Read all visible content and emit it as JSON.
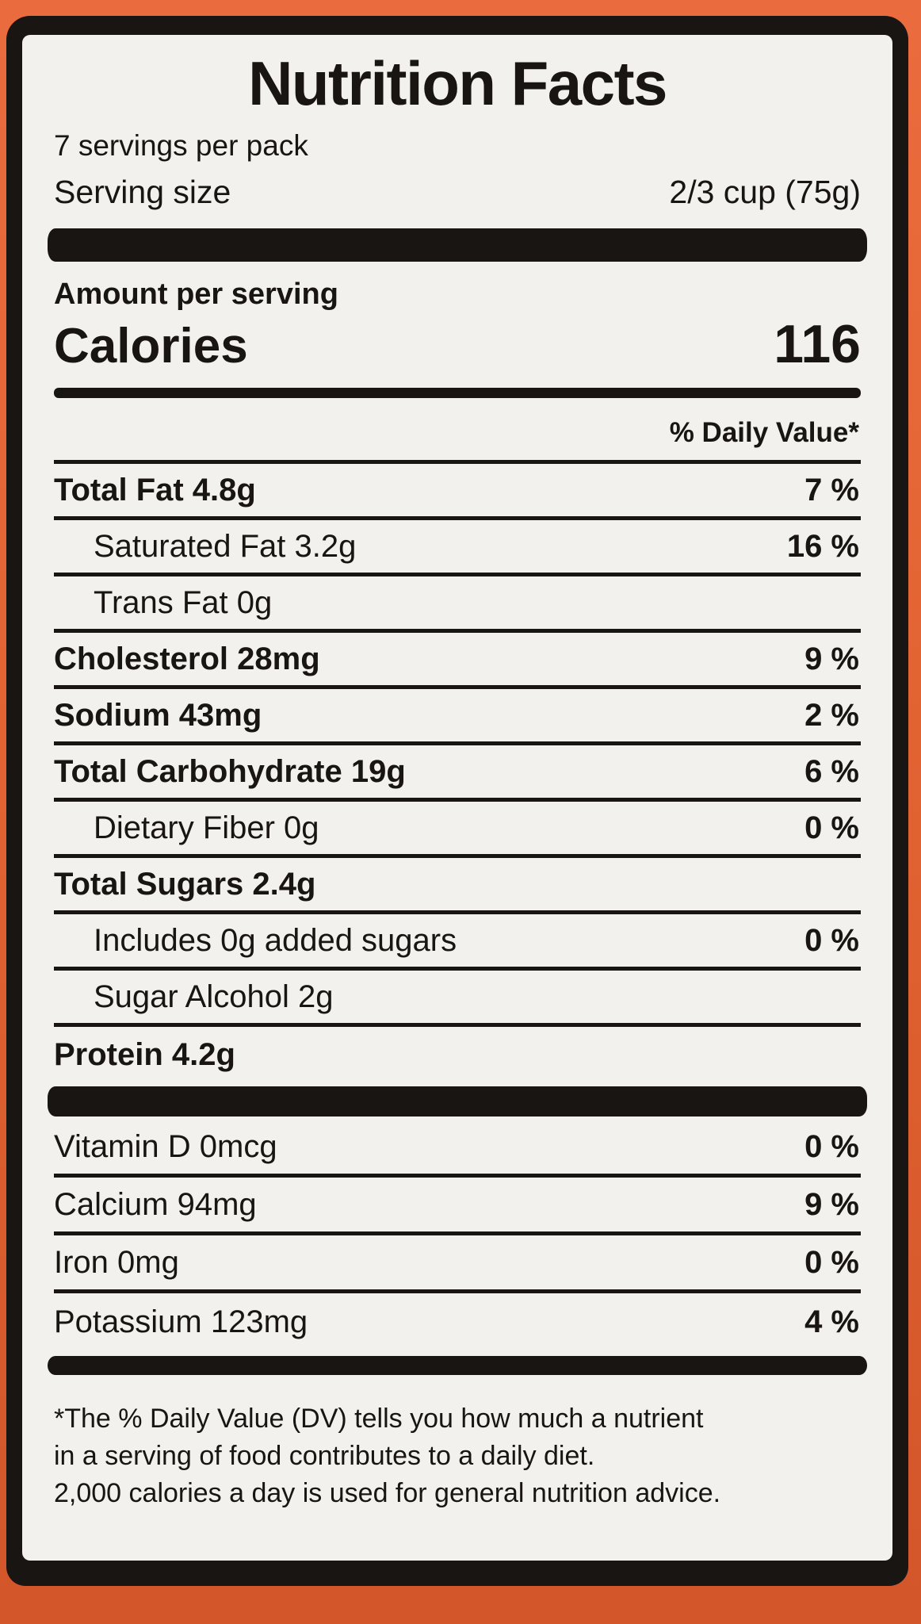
{
  "label": {
    "title": "Nutrition Facts",
    "servings_per_pack": "7 servings per pack",
    "serving_size_label": "Serving size",
    "serving_size_value": "2/3 cup (75g)",
    "amount_per_serving": "Amount per serving",
    "calories_label": "Calories",
    "calories_value": "116",
    "daily_value_header": "% Daily Value*",
    "rows": [
      {
        "name": "Total Fat 4.8g",
        "percent": "7 %",
        "emphasis": true,
        "indent": 0
      },
      {
        "name": "Saturated Fat 3.2g",
        "percent": "16 %",
        "emphasis": false,
        "indent": 1
      },
      {
        "name": "Trans Fat 0g",
        "percent": "",
        "emphasis": false,
        "indent": 1
      },
      {
        "name": "Cholesterol 28mg",
        "percent": "9 %",
        "emphasis": true,
        "indent": 0
      },
      {
        "name": "Sodium 43mg",
        "percent": "2 %",
        "emphasis": true,
        "indent": 0
      },
      {
        "name": "Total Carbohydrate 19g",
        "percent": "6 %",
        "emphasis": true,
        "indent": 0
      },
      {
        "name": "Dietary Fiber 0g",
        "percent": "0 %",
        "emphasis": false,
        "indent": 1
      },
      {
        "name": "Total Sugars 2.4g",
        "percent": "",
        "emphasis": true,
        "indent": 0
      },
      {
        "name": "Includes 0g added sugars",
        "percent": "0 %",
        "emphasis": false,
        "indent": 1
      },
      {
        "name": "Sugar Alcohol 2g",
        "percent": "",
        "emphasis": false,
        "indent": 1
      },
      {
        "name": "Protein 4.2g",
        "percent": "",
        "emphasis": true,
        "indent": 0
      }
    ],
    "micronutrients": [
      {
        "name": "Vitamin D 0mcg",
        "percent": "0 %",
        "emphasis": false,
        "indent": 0
      },
      {
        "name": "Calcium 94mg",
        "percent": "9 %",
        "emphasis": false,
        "indent": 0
      },
      {
        "name": "Iron 0mg",
        "percent": "0 %",
        "emphasis": false,
        "indent": 0
      },
      {
        "name": "Potassium 123mg",
        "percent": "4 %",
        "emphasis": false,
        "indent": 0
      }
    ],
    "footnote_lines": [
      {
        "text": "*The % Daily Value (DV) tells you how much a nutrient"
      },
      {
        "text": "in a serving of food contributes to a daily diet."
      },
      {
        "text": "2,000 calories a day is used for general nutrition advice."
      }
    ]
  },
  "colors": {
    "background_orange": "#E26332",
    "label_paper": "#F3F1ED",
    "ink": "#191512"
  }
}
